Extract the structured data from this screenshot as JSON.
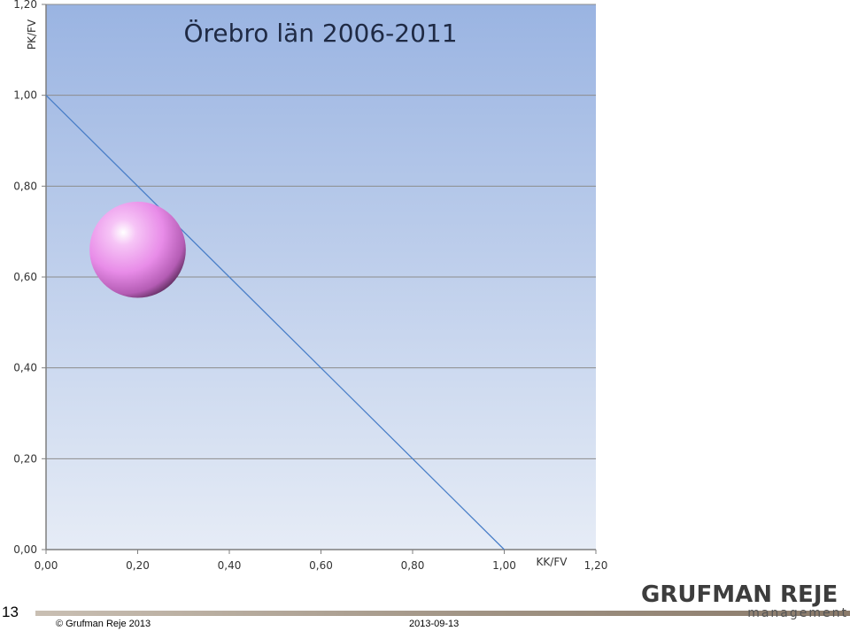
{
  "chart_data": {
    "type": "bubble",
    "title": "Örebro län 2006-2011",
    "xlabel": "KK/FV",
    "ylabel": "PK/FV",
    "xlim": [
      0,
      1.2
    ],
    "ylim": [
      0,
      1.2
    ],
    "x_ticks": [
      "0,00",
      "0,20",
      "0,40",
      "0,60",
      "0,80",
      "1,00",
      "1,20"
    ],
    "y_ticks": [
      "0,00",
      "0,20",
      "0,40",
      "0,60",
      "0,80",
      "1,00",
      "1,20"
    ],
    "grid": "horizontal",
    "reference_line": {
      "from": [
        0,
        1.0
      ],
      "to": [
        1.0,
        0
      ]
    },
    "bubbles": [
      {
        "x": 0.2,
        "y": 0.66,
        "size": 0.1,
        "color": "#f090f0"
      }
    ],
    "colors": {
      "plot_top": "#9ab4e2",
      "plot_bottom": "#e6ecf6",
      "line": "#4a7fc8",
      "gridline": "#8c8c8c"
    }
  },
  "footer": {
    "slide_number": "13",
    "copyright_icon": "copyright-icon",
    "copyright_text": "Grufman Reje 2013",
    "date": "2013-09-13"
  },
  "logo": {
    "main": "GRUFMAN REJE",
    "sub": "management"
  }
}
